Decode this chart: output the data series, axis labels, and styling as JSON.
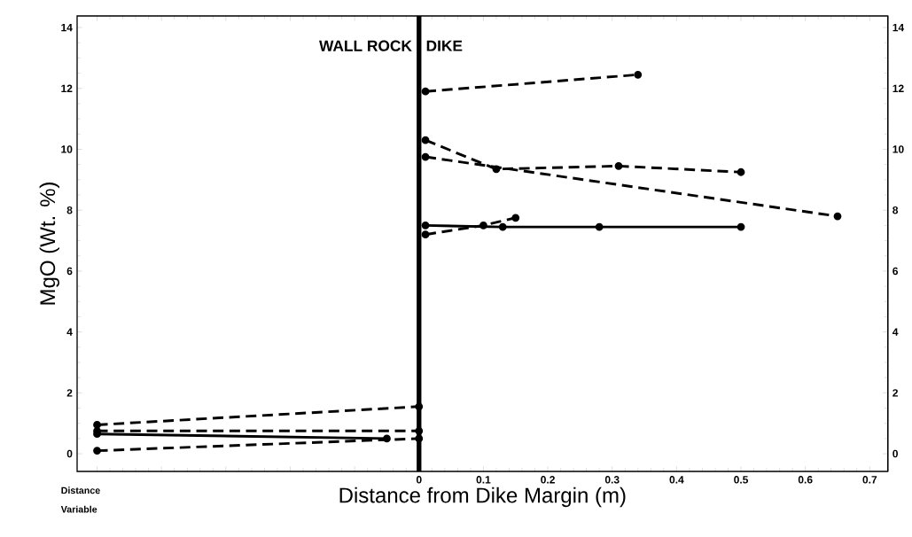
{
  "chart_data": {
    "type": "line",
    "xlabel": "Distance from Dike Margin (m)",
    "ylabel": "MgO (Wt. %)",
    "xlim": [
      -0.531,
      0.728
    ],
    "ylim": [
      -0.58,
      14.38
    ],
    "y2lim": [
      -0.58,
      14.38
    ],
    "xticks": [
      {
        "value": -0.5,
        "label": null
      },
      {
        "value": -0.4,
        "label": null
      },
      {
        "value": -0.3,
        "label": null
      },
      {
        "value": -0.2,
        "label": null
      },
      {
        "value": -0.1,
        "label": null
      },
      0,
      0.1,
      0.2,
      0.3,
      0.4,
      0.5,
      0.6,
      0.7
    ],
    "yticks": [
      0,
      2,
      4,
      6,
      8,
      10,
      12,
      14
    ],
    "y2ticks": [
      0,
      2,
      4,
      6,
      8,
      10,
      12,
      14
    ],
    "marker": "circle",
    "grid": false,
    "series": [
      {
        "color": "#000000",
        "line_style": "dashed",
        "x": [
          0.01,
          0.34
        ],
        "values": [
          11.9,
          12.45
        ]
      },
      {
        "color": "#000000",
        "line_style": "dashed",
        "x": [
          0.01,
          0.12,
          0.31,
          0.5
        ],
        "values": [
          10.3,
          9.35,
          9.45,
          9.25
        ]
      },
      {
        "color": "#000000",
        "line_style": "dashed",
        "x": [
          0.01,
          0.65
        ],
        "values": [
          9.75,
          7.8
        ]
      },
      {
        "color": "#000000",
        "line_style": "solid",
        "x": [
          0.01,
          0.13,
          0.28,
          0.5
        ],
        "values": [
          7.5,
          7.45,
          7.45,
          7.45
        ]
      },
      {
        "color": "#000000",
        "line_style": "dashed",
        "x": [
          0.01,
          0.1,
          0.15
        ],
        "values": [
          7.2,
          7.5,
          7.75
        ]
      },
      {
        "color": "#000000",
        "line_style": "dashed",
        "x": [
          -0.5,
          0.0
        ],
        "values": [
          0.95,
          1.55
        ]
      },
      {
        "color": "#000000",
        "line_style": "dashed",
        "x": [
          -0.5,
          0.0
        ],
        "values": [
          0.75,
          0.75
        ]
      },
      {
        "color": "#000000",
        "line_style": "solid",
        "x": [
          -0.5,
          -0.05
        ],
        "values": [
          0.65,
          0.5
        ]
      },
      {
        "color": "#000000",
        "line_style": "dashed",
        "x": [
          -0.5,
          0.0
        ],
        "values": [
          0.1,
          0.5
        ]
      }
    ],
    "ref_lines": [
      {
        "axis": "x",
        "value": 0,
        "color": "#000000"
      }
    ],
    "annotations": [
      {
        "text": "WALL ROCK",
        "x": -0.008,
        "y": 13.4
      },
      {
        "text": "DIKE",
        "x": 0.008,
        "y": 13.4
      },
      "Distance Variable"
    ]
  }
}
